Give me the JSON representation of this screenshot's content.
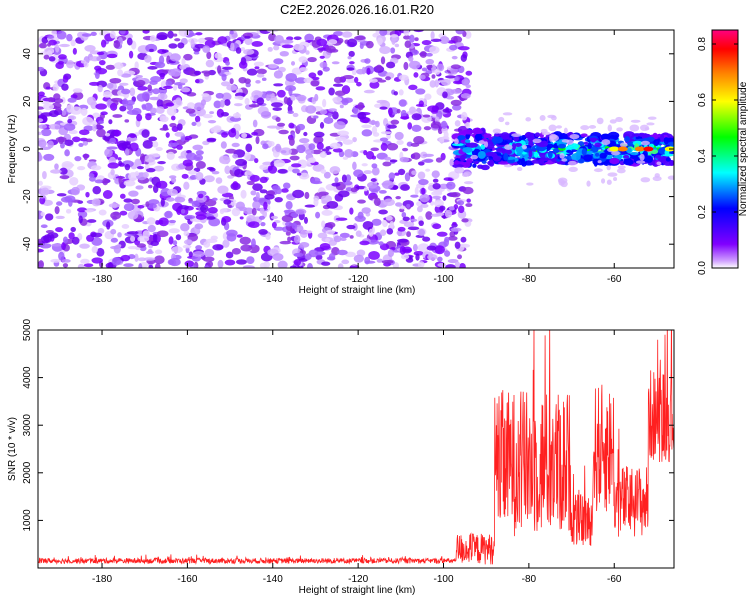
{
  "figure": {
    "title": "C2E2.2026.026.16.01.R20"
  },
  "chart_data": [
    {
      "type": "heatmap",
      "name": "spectrogram",
      "xlabel": "Height of straight line (km)",
      "ylabel": "Frequency (Hz)",
      "xlim": [
        -195,
        -46
      ],
      "ylim": [
        -50,
        50
      ],
      "xticks": [
        -180,
        -160,
        -140,
        -120,
        -100,
        -80,
        -60
      ],
      "yticks": [
        -40,
        -20,
        0,
        20,
        40
      ],
      "colorbar": {
        "label": "Normalized spectral amplitude",
        "range": [
          0,
          0.85
        ],
        "ticks": [
          0.0,
          0.2,
          0.4,
          0.6,
          0.8
        ],
        "colors": [
          "#ffffff",
          "#8000ff",
          "#0000ff",
          "#00ffff",
          "#00ff00",
          "#ffff00",
          "#ff8000",
          "#ff0000",
          "#ff0080"
        ]
      },
      "regions": [
        {
          "x_range": [
            -195,
            -97
          ],
          "y_range": [
            -50,
            50
          ],
          "description_level": 0.12
        },
        {
          "x_range": [
            -97,
            -46
          ],
          "y_center": 0,
          "half_width_hz": 6,
          "peak": 0.8,
          "peak_x": -52
        }
      ],
      "grid": false
    },
    {
      "type": "line",
      "name": "snr",
      "xlabel": "Height of straight line (km)",
      "ylabel": "SNR (10 * v/v)",
      "xlim": [
        -195,
        -46
      ],
      "ylim": [
        0,
        5000
      ],
      "xticks": [
        -180,
        -160,
        -140,
        -120,
        -100,
        -80,
        -60
      ],
      "yticks": [
        1000,
        2000,
        3000,
        4000,
        5000
      ],
      "color": "#ff2020",
      "segments": [
        {
          "x": [
            -195,
            -97
          ],
          "mean": 150,
          "spread": 100
        },
        {
          "x": [
            -97,
            -88
          ],
          "mean": 400,
          "spread": 600
        },
        {
          "x": [
            -88,
            -70
          ],
          "mean": 2200,
          "spread": 2800
        },
        {
          "x": [
            -70,
            -65
          ],
          "mean": 1000,
          "spread": 1000
        },
        {
          "x": [
            -65,
            -60
          ],
          "mean": 2500,
          "spread": 2500
        },
        {
          "x": [
            -60,
            -52
          ],
          "mean": 1400,
          "spread": 1400
        },
        {
          "x": [
            -52,
            -46
          ],
          "mean": 3200,
          "spread": 1800
        }
      ],
      "grid": false
    }
  ]
}
